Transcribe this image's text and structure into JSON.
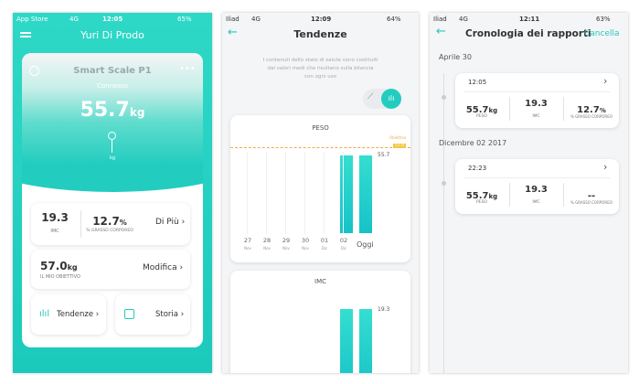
{
  "screens": [
    {
      "status": {
        "carrier": "App Store",
        "network": "4G",
        "time": "12:05",
        "battery": "65%"
      },
      "title": "Yuri Di Prodo",
      "device": {
        "name": "Smart Scale P1",
        "state": "Connesso",
        "weight": "55.7",
        "unit": "kg",
        "dial_unit": "kg"
      },
      "stats": [
        {
          "value": "19.3",
          "label": "IMC"
        },
        {
          "value": "12.7",
          "unit": "%",
          "label": "% GRASSO CORPOREO"
        }
      ],
      "more": "Di Più",
      "goal": {
        "value": "57.0",
        "unit": "kg",
        "label": "IL MIO OBIETTIVO",
        "action": "Modifica"
      },
      "buttons": [
        "Tendenze",
        "Storia"
      ]
    },
    {
      "status": {
        "carrier": "Iliad",
        "network": "4G",
        "time": "12:09",
        "battery": "64%"
      },
      "title": "Tendenze",
      "description": [
        "I contenuti dello stato di salute sono costituiti",
        "dai valori medi che risultano sulla bilancia",
        "con ogni uso"
      ],
      "weight_chart": {
        "label": "PESO",
        "goal_label": "Obiettivo",
        "goal_value": "57.0",
        "value": "55.7",
        "days": [
          "27",
          "28",
          "29",
          "30",
          "01",
          "02"
        ],
        "months": [
          "Nov",
          "Nov",
          "Nov",
          "Nov",
          "Dic",
          "Dic"
        ],
        "today": "Oggi"
      },
      "bmi_chart": {
        "label": "IMC",
        "value": "19.3"
      }
    },
    {
      "status": {
        "carrier": "Iliad",
        "network": "4G",
        "time": "12:11",
        "battery": "63%"
      },
      "title": "Cronologia dei rapporti",
      "action": "Cancella",
      "entries": [
        {
          "date": "Aprile 30",
          "time": "12:05",
          "weight": "55.7",
          "weight_unit": "kg",
          "weight_label": "PESO",
          "bmi": "19.3",
          "bmi_label": "IMC",
          "fat": "12.7",
          "fat_unit": "%",
          "fat_label": "% GRASSO CORPOREO"
        },
        {
          "date": "Dicembre 02 2017",
          "time": "22:23",
          "weight": "55.7",
          "weight_unit": "kg",
          "weight_label": "PESO",
          "bmi": "19.3",
          "bmi_label": "IMC",
          "fat": "--",
          "fat_label": "% GRASSO CORPOREO"
        }
      ]
    }
  ]
}
